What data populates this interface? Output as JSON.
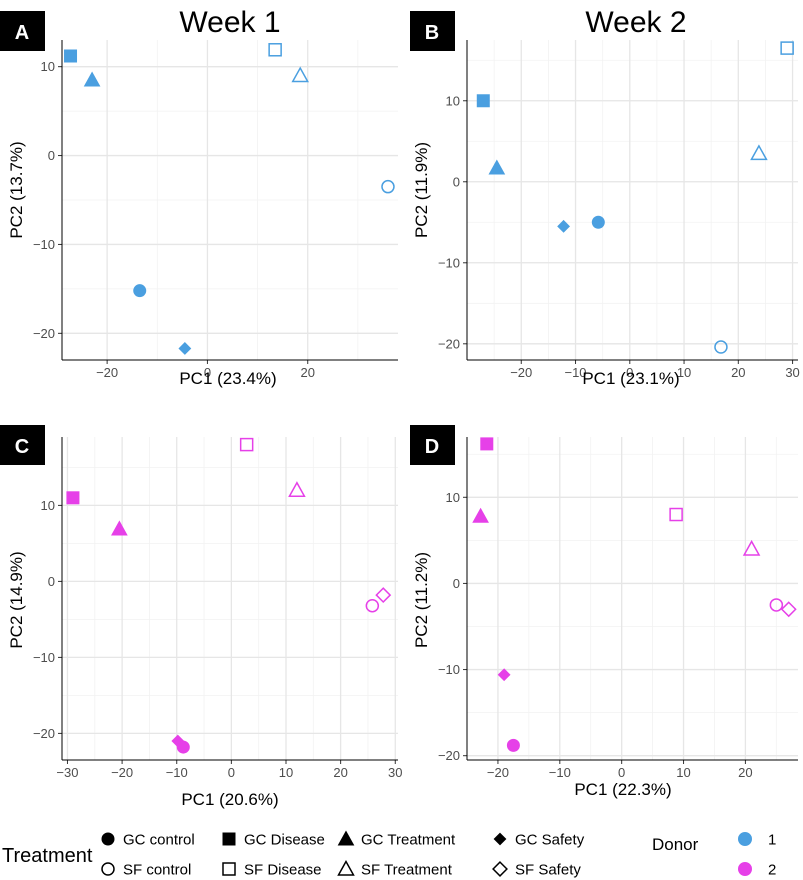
{
  "colors": {
    "donor1": "#4a9fe0",
    "donor2": "#e640e8",
    "grid": "#e6e6e6",
    "axis": "#000000",
    "tag_bg": "#000000",
    "tag_fg": "#ffffff"
  },
  "week_titles": [
    "Week 1",
    "Week 2"
  ],
  "chart_data": [
    {
      "panel": "A",
      "type": "scatter",
      "title": "Week 1",
      "xlabel": "PC1 (23.4%)",
      "ylabel": "PC2 (13.7%)",
      "xlim": [
        -29,
        38
      ],
      "ylim": [
        -23,
        13
      ],
      "xticks": [
        -20,
        0,
        20
      ],
      "yticks": [
        -20,
        -10,
        0,
        10
      ],
      "donor": "1",
      "points": [
        {
          "treatment": "GC Disease",
          "x": -27.3,
          "y": 11.2
        },
        {
          "treatment": "GC Treatment",
          "x": -23.0,
          "y": 8.5
        },
        {
          "treatment": "SF Disease",
          "x": 13.5,
          "y": 11.9
        },
        {
          "treatment": "SF Treatment",
          "x": 18.5,
          "y": 9.0
        },
        {
          "treatment": "SF control",
          "x": 36.0,
          "y": -3.5
        },
        {
          "treatment": "GC control",
          "x": -13.5,
          "y": -15.2
        },
        {
          "treatment": "GC Safety",
          "x": -4.5,
          "y": -21.7
        }
      ]
    },
    {
      "panel": "B",
      "type": "scatter",
      "title": "Week 2",
      "xlabel": "PC1 (23.1%)",
      "ylabel": "PC2 (11.9%)",
      "xlim": [
        -30,
        31
      ],
      "ylim": [
        -22,
        17.5
      ],
      "xticks": [
        -20,
        -10,
        0,
        10,
        20,
        30
      ],
      "yticks": [
        -20,
        -10,
        0,
        10
      ],
      "donor": "1",
      "points": [
        {
          "treatment": "SF Disease",
          "x": 29.0,
          "y": 16.5
        },
        {
          "treatment": "GC Disease",
          "x": -27.0,
          "y": 10.0
        },
        {
          "treatment": "GC Treatment",
          "x": -24.5,
          "y": 1.7
        },
        {
          "treatment": "SF Treatment",
          "x": 23.8,
          "y": 3.5
        },
        {
          "treatment": "GC Safety",
          "x": -12.2,
          "y": -5.5
        },
        {
          "treatment": "GC control",
          "x": -5.8,
          "y": -5.0
        },
        {
          "treatment": "SF control",
          "x": 16.8,
          "y": -20.4
        }
      ]
    },
    {
      "panel": "C",
      "type": "scatter",
      "title": "",
      "xlabel": "PC1 (20.6%)",
      "ylabel": "PC2 (14.9%)",
      "xlim": [
        -31,
        30.5
      ],
      "ylim": [
        -23.5,
        19
      ],
      "xticks": [
        -30,
        -20,
        -10,
        0,
        10,
        20,
        30
      ],
      "yticks": [
        -20,
        -10,
        0,
        10
      ],
      "donor": "2",
      "points": [
        {
          "treatment": "SF Disease",
          "x": 2.8,
          "y": 18.0
        },
        {
          "treatment": "GC Disease",
          "x": -29.0,
          "y": 11.0
        },
        {
          "treatment": "SF Treatment",
          "x": 12.0,
          "y": 12.0
        },
        {
          "treatment": "GC Treatment",
          "x": -20.5,
          "y": 6.9
        },
        {
          "treatment": "SF control",
          "x": 25.8,
          "y": -3.2
        },
        {
          "treatment": "SF Safety",
          "x": 27.8,
          "y": -1.8
        },
        {
          "treatment": "GC Safety",
          "x": -9.8,
          "y": -21.0
        },
        {
          "treatment": "GC control",
          "x": -8.8,
          "y": -21.8
        }
      ]
    },
    {
      "panel": "D",
      "type": "scatter",
      "title": "",
      "xlabel": "PC1 (22.3%)",
      "ylabel": "PC2 (11.2%)",
      "xlim": [
        -25,
        28.5
      ],
      "ylim": [
        -20.5,
        17
      ],
      "xticks": [
        -20,
        -10,
        0,
        10,
        20
      ],
      "yticks": [
        -20,
        -10,
        0,
        10
      ],
      "donor": "2",
      "points": [
        {
          "treatment": "GC Disease",
          "x": -21.8,
          "y": 16.2
        },
        {
          "treatment": "SF Disease",
          "x": 8.8,
          "y": 8.0
        },
        {
          "treatment": "GC Treatment",
          "x": -22.8,
          "y": 7.8
        },
        {
          "treatment": "SF Treatment",
          "x": 21.0,
          "y": 4.0
        },
        {
          "treatment": "SF control",
          "x": 25.0,
          "y": -2.5
        },
        {
          "treatment": "SF Safety",
          "x": 27.0,
          "y": -3.0
        },
        {
          "treatment": "GC Safety",
          "x": -19.0,
          "y": -10.6
        },
        {
          "treatment": "GC control",
          "x": -17.5,
          "y": -18.8
        }
      ]
    }
  ],
  "legend": {
    "treatment_title": "Treatment",
    "treatment_items": [
      {
        "label": "GC control",
        "shape": "circle",
        "filled": true
      },
      {
        "label": "GC Disease",
        "shape": "square",
        "filled": true
      },
      {
        "label": "GC Treatment",
        "shape": "triangle",
        "filled": true
      },
      {
        "label": "GC Safety",
        "shape": "diamond",
        "filled": true
      },
      {
        "label": "SF control",
        "shape": "circle",
        "filled": false
      },
      {
        "label": "SF Disease",
        "shape": "square",
        "filled": false
      },
      {
        "label": "SF Treatment",
        "shape": "triangle",
        "filled": false
      },
      {
        "label": "SF Safety",
        "shape": "diamond",
        "filled": false
      }
    ],
    "donor_title": "Donor",
    "donor_items": [
      {
        "label": "1",
        "color": "#4a9fe0"
      },
      {
        "label": "2",
        "color": "#e640e8"
      }
    ]
  }
}
